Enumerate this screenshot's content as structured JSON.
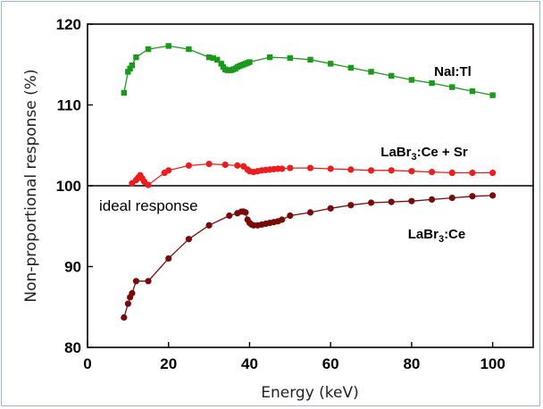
{
  "chart_data": {
    "type": "line",
    "xlabel": "Energy (keV)",
    "ylabel": "Non-proportional response (%)",
    "xlim": [
      0,
      110
    ],
    "ylim": [
      80,
      120
    ],
    "x_ticks": [
      0,
      20,
      40,
      60,
      80,
      100
    ],
    "y_ticks": [
      80,
      90,
      100,
      110,
      120
    ],
    "grid": false,
    "reference_line": {
      "y": 100,
      "label": "ideal response",
      "color": "#000000"
    },
    "series": [
      {
        "name": "NaI:Tl",
        "name_parts": [
          "NaI:Tl",
          "",
          ""
        ],
        "color": "#1a9a1a",
        "marker": "square",
        "points": [
          [
            9,
            111.5
          ],
          [
            10,
            114.1
          ],
          [
            10.5,
            114.5
          ],
          [
            11,
            114.9
          ],
          [
            12,
            115.9
          ],
          [
            15,
            116.9
          ],
          [
            20,
            117.3
          ],
          [
            25,
            116.9
          ],
          [
            30,
            115.9
          ],
          [
            31,
            115.8
          ],
          [
            32,
            115.6
          ],
          [
            33,
            115.1
          ],
          [
            33.5,
            114.7
          ],
          [
            34,
            114.4
          ],
          [
            34.5,
            114.3
          ],
          [
            35,
            114.3
          ],
          [
            35.5,
            114.3
          ],
          [
            36,
            114.4
          ],
          [
            36.5,
            114.5
          ],
          [
            37,
            114.7
          ],
          [
            37.5,
            114.8
          ],
          [
            38,
            114.9
          ],
          [
            38.5,
            115.0
          ],
          [
            39,
            115.1
          ],
          [
            39.5,
            115.2
          ],
          [
            40,
            115.3
          ],
          [
            45,
            115.9
          ],
          [
            50,
            115.8
          ],
          [
            55,
            115.6
          ],
          [
            60,
            115.1
          ],
          [
            65,
            114.6
          ],
          [
            70,
            114.1
          ],
          [
            75,
            113.6
          ],
          [
            80,
            113.1
          ],
          [
            85,
            112.7
          ],
          [
            90,
            112.2
          ],
          [
            95,
            111.7
          ],
          [
            100,
            111.2
          ]
        ]
      },
      {
        "name": "LaBr3:Ce + Sr",
        "name_parts": [
          "LaBr",
          "3",
          ":Ce + Sr"
        ],
        "color": "#ee1c1c",
        "marker": "circle",
        "points": [
          [
            11,
            100.3
          ],
          [
            12,
            100.7
          ],
          [
            12.5,
            101.0
          ],
          [
            13,
            101.3
          ],
          [
            13.5,
            100.9
          ],
          [
            14,
            100.5
          ],
          [
            15,
            100.1
          ],
          [
            19,
            101.6
          ],
          [
            20,
            101.9
          ],
          [
            25,
            102.5
          ],
          [
            30,
            102.7
          ],
          [
            34,
            102.6
          ],
          [
            37,
            102.5
          ],
          [
            38.5,
            102.4
          ],
          [
            39.5,
            102.0
          ],
          [
            40,
            101.8
          ],
          [
            41,
            101.7
          ],
          [
            42,
            101.8
          ],
          [
            43,
            101.9
          ],
          [
            44,
            101.95
          ],
          [
            45,
            102.0
          ],
          [
            46,
            102.05
          ],
          [
            47,
            102.1
          ],
          [
            48,
            102.1
          ],
          [
            50,
            102.2
          ],
          [
            55,
            102.2
          ],
          [
            60,
            102.1
          ],
          [
            65,
            102.0
          ],
          [
            70,
            101.9
          ],
          [
            75,
            101.9
          ],
          [
            80,
            101.8
          ],
          [
            85,
            101.7
          ],
          [
            90,
            101.6
          ],
          [
            95,
            101.6
          ],
          [
            100,
            101.6
          ]
        ]
      },
      {
        "name": "LaBr3:Ce",
        "name_parts": [
          "LaBr",
          "3",
          ":Ce"
        ],
        "color": "#7a0a0a",
        "marker": "circle",
        "points": [
          [
            9,
            83.7
          ],
          [
            10,
            85.4
          ],
          [
            10.5,
            86.2
          ],
          [
            11,
            86.7
          ],
          [
            12,
            88.2
          ],
          [
            15,
            88.2
          ],
          [
            20,
            91.0
          ],
          [
            25,
            93.4
          ],
          [
            30,
            95.1
          ],
          [
            35,
            96.3
          ],
          [
            37,
            96.6
          ],
          [
            38,
            96.8
          ],
          [
            38.5,
            96.8
          ],
          [
            39,
            96.7
          ],
          [
            39.5,
            95.8
          ],
          [
            40,
            95.4
          ],
          [
            40.5,
            95.2
          ],
          [
            41,
            95.1
          ],
          [
            42,
            95.1
          ],
          [
            43,
            95.2
          ],
          [
            44,
            95.3
          ],
          [
            45,
            95.4
          ],
          [
            46,
            95.5
          ],
          [
            47,
            95.6
          ],
          [
            48,
            95.8
          ],
          [
            50,
            96.3
          ],
          [
            55,
            96.7
          ],
          [
            60,
            97.2
          ],
          [
            65,
            97.6
          ],
          [
            70,
            97.9
          ],
          [
            75,
            98.0
          ],
          [
            80,
            98.1
          ],
          [
            85,
            98.3
          ],
          [
            90,
            98.5
          ],
          [
            95,
            98.7
          ],
          [
            100,
            98.8
          ]
        ]
      }
    ]
  }
}
